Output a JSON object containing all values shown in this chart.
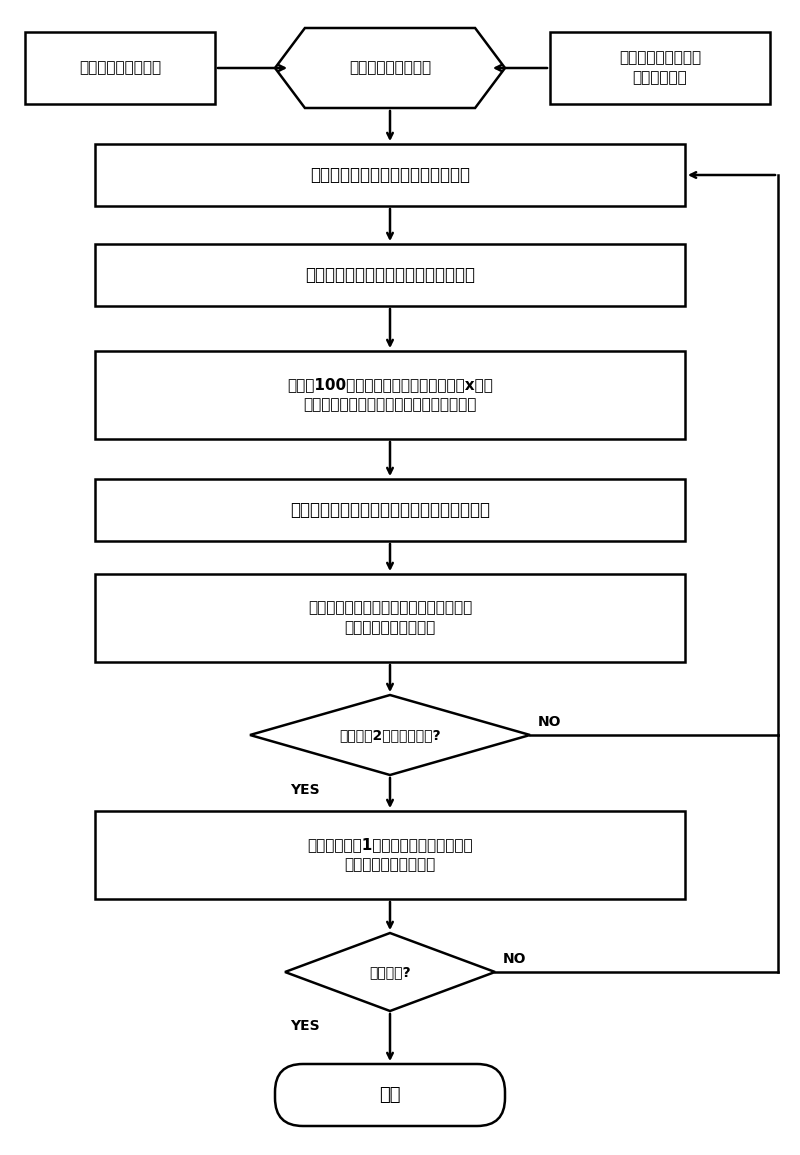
{
  "bg_color": "#ffffff",
  "fig_width": 8.0,
  "fig_height": 11.55,
  "font_size_large": 12,
  "font_size_med": 11,
  "font_size_small": 10,
  "font_size_end": 13,
  "lw": 1.8,
  "calib_text": "摄像机内外参数标定",
  "start_text": "双目摄像机开始工作",
  "setup_text": "双列计数线位置设置\n背景视差预存",
  "step1_text": "当前帧双列计数线上各点的视差计算",
  "step2_text": "双列计数线上前景目标的视差阈值提取",
  "step3_text": "将最新100帧的列计数线前景目标视差在x方向\n时间轴上展开构成两幅动态列视差时空图像",
  "step4_text": "生成前景目标视差时空图像的地平面映射图像",
  "step5_text": "地平面映射图像中运动目标的提取和标记\n运动目标的分割和合并",
  "dec1_text": "在计数线2上出现目标吗?",
  "step6_text": "搜索与计数线1上该目标最佳匹配的目标\n方向判断，更新计数器",
  "dec2_text": "计数结束?",
  "end_text": "结束",
  "yes_label": "YES",
  "no_label": "NO",
  "arrow_color": "#000000",
  "box_edge_color": "#000000",
  "box_face_color": "#ffffff",
  "text_color": "#000000"
}
